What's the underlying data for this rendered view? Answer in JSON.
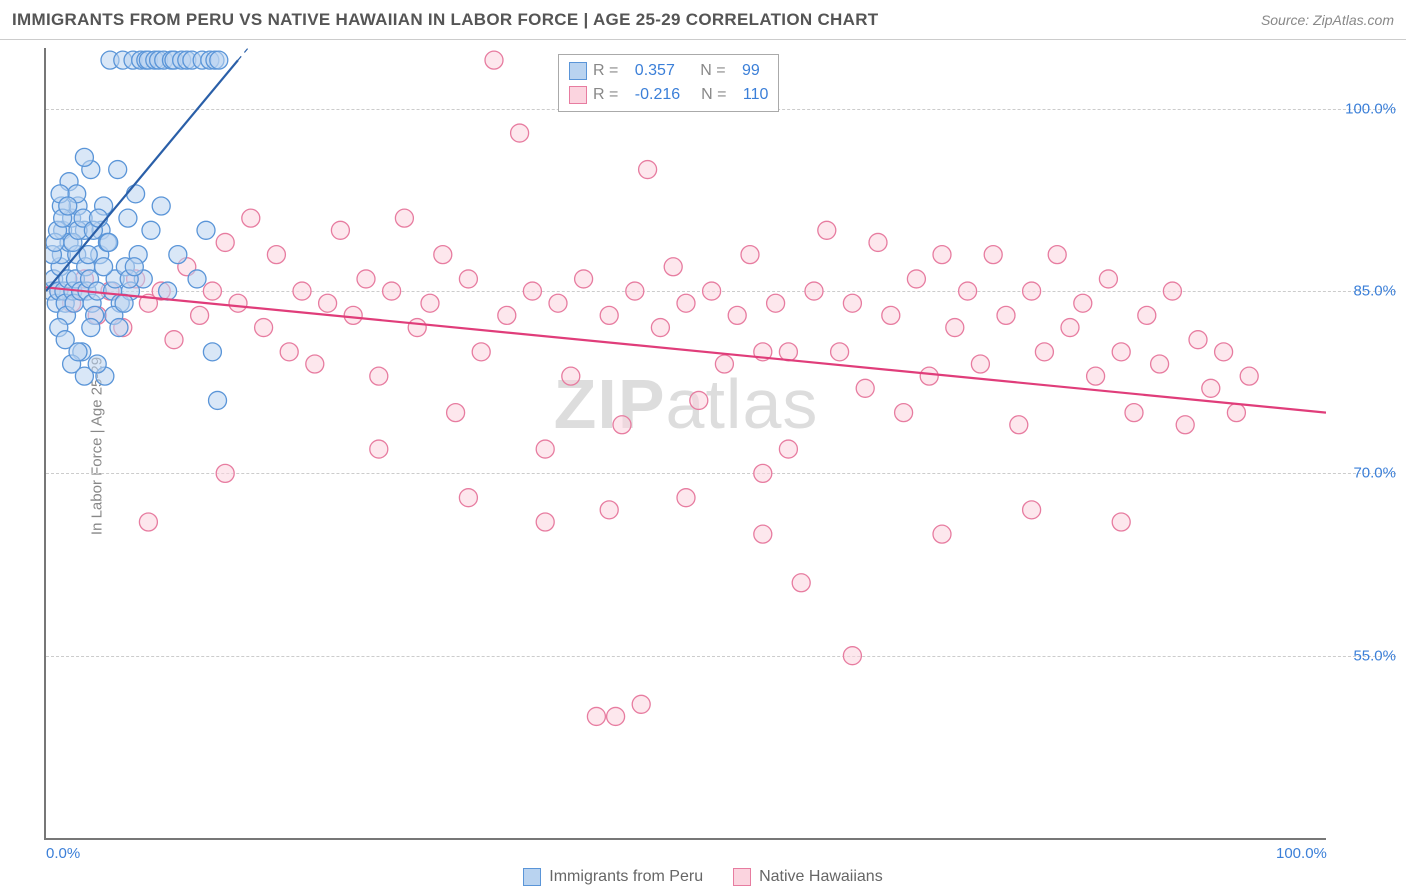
{
  "title": "IMMIGRANTS FROM PERU VS NATIVE HAWAIIAN IN LABOR FORCE | AGE 25-29 CORRELATION CHART",
  "source": "Source: ZipAtlas.com",
  "ylabel": "In Labor Force | Age 25-29",
  "watermark_zip": "ZIP",
  "watermark_rest": "atlas",
  "chart": {
    "type": "scatter",
    "background_color": "#ffffff",
    "grid_color": "#cccccc",
    "axis_color": "#777777",
    "tick_color": "#3b7fd8",
    "label_color": "#888888",
    "title_color": "#555555",
    "title_fontsize": 17,
    "label_fontsize": 15,
    "tick_fontsize": 15,
    "xlim": [
      0,
      100
    ],
    "ylim": [
      40,
      105
    ],
    "yticks": [
      55.0,
      70.0,
      85.0,
      100.0
    ],
    "ytick_labels": [
      "55.0%",
      "70.0%",
      "85.0%",
      "100.0%"
    ],
    "xticks": [
      0,
      100
    ],
    "xtick_labels": [
      "0.0%",
      "100.0%"
    ],
    "marker_radius": 9,
    "marker_stroke_width": 1.3,
    "line_width": 2.2,
    "series": [
      {
        "name": "Immigrants from Peru",
        "fill": "#b9d3f0",
        "fill_opacity": 0.55,
        "stroke": "#5a95d8",
        "line_color": "#2a5fa8",
        "R": 0.357,
        "N": 99,
        "regression": {
          "x1": 0,
          "y1": 85,
          "x2": 15,
          "y2": 104,
          "dash_extend_x": 21
        },
        "points": [
          [
            0.4,
            85
          ],
          [
            0.6,
            86
          ],
          [
            0.8,
            84
          ],
          [
            1.0,
            85
          ],
          [
            1.1,
            87
          ],
          [
            1.2,
            88
          ],
          [
            1.3,
            90
          ],
          [
            1.4,
            85
          ],
          [
            1.5,
            84
          ],
          [
            1.6,
            83
          ],
          [
            1.7,
            86
          ],
          [
            1.8,
            89
          ],
          [
            2.0,
            91
          ],
          [
            2.1,
            85
          ],
          [
            2.2,
            84
          ],
          [
            2.3,
            86
          ],
          [
            2.4,
            88
          ],
          [
            2.5,
            92
          ],
          [
            2.7,
            85
          ],
          [
            2.8,
            80
          ],
          [
            3.0,
            90
          ],
          [
            3.1,
            87
          ],
          [
            3.2,
            85
          ],
          [
            3.4,
            86
          ],
          [
            3.5,
            95
          ],
          [
            3.6,
            84
          ],
          [
            3.8,
            83
          ],
          [
            4.0,
            85
          ],
          [
            4.2,
            88
          ],
          [
            4.3,
            90
          ],
          [
            4.5,
            92
          ],
          [
            4.6,
            78
          ],
          [
            4.8,
            89
          ],
          [
            5.0,
            104
          ],
          [
            5.2,
            85
          ],
          [
            5.4,
            86
          ],
          [
            5.6,
            95
          ],
          [
            5.8,
            84
          ],
          [
            6.0,
            104
          ],
          [
            6.2,
            87
          ],
          [
            6.4,
            91
          ],
          [
            6.6,
            85
          ],
          [
            6.8,
            104
          ],
          [
            7.0,
            93
          ],
          [
            7.2,
            88
          ],
          [
            7.4,
            104
          ],
          [
            7.6,
            86
          ],
          [
            7.8,
            104
          ],
          [
            8.0,
            104
          ],
          [
            8.2,
            90
          ],
          [
            8.5,
            104
          ],
          [
            8.8,
            104
          ],
          [
            9.0,
            92
          ],
          [
            9.2,
            104
          ],
          [
            9.5,
            85
          ],
          [
            9.8,
            104
          ],
          [
            10.0,
            104
          ],
          [
            10.3,
            88
          ],
          [
            10.6,
            104
          ],
          [
            11.0,
            104
          ],
          [
            11.4,
            104
          ],
          [
            11.8,
            86
          ],
          [
            12.2,
            104
          ],
          [
            12.5,
            90
          ],
          [
            12.8,
            104
          ],
          [
            13.0,
            80
          ],
          [
            13.2,
            104
          ],
          [
            13.4,
            76
          ],
          [
            13.5,
            104
          ],
          [
            1.0,
            82
          ],
          [
            1.5,
            81
          ],
          [
            2.0,
            79
          ],
          [
            2.5,
            80
          ],
          [
            3.0,
            78
          ],
          [
            3.5,
            82
          ],
          [
            4.0,
            79
          ],
          [
            1.2,
            92
          ],
          [
            1.8,
            94
          ],
          [
            2.4,
            93
          ],
          [
            3.0,
            96
          ],
          [
            0.5,
            88
          ],
          [
            0.7,
            89
          ],
          [
            0.9,
            90
          ],
          [
            1.1,
            93
          ],
          [
            1.3,
            91
          ],
          [
            1.7,
            92
          ],
          [
            2.1,
            89
          ],
          [
            2.5,
            90
          ],
          [
            2.9,
            91
          ],
          [
            3.3,
            88
          ],
          [
            3.7,
            90
          ],
          [
            4.1,
            91
          ],
          [
            4.5,
            87
          ],
          [
            4.9,
            89
          ],
          [
            5.3,
            83
          ],
          [
            5.7,
            82
          ],
          [
            6.1,
            84
          ],
          [
            6.5,
            86
          ],
          [
            6.9,
            87
          ]
        ]
      },
      {
        "name": "Native Hawaiians",
        "fill": "#fbd4df",
        "fill_opacity": 0.55,
        "stroke": "#e77ca0",
        "line_color": "#e03d7a",
        "R": -0.216,
        "N": 110,
        "regression": {
          "x1": 0,
          "y1": 85.3,
          "x2": 100,
          "y2": 75
        },
        "points": [
          [
            1,
            85
          ],
          [
            2,
            84
          ],
          [
            3,
            86
          ],
          [
            4,
            83
          ],
          [
            5,
            85
          ],
          [
            6,
            82
          ],
          [
            7,
            86
          ],
          [
            8,
            84
          ],
          [
            9,
            85
          ],
          [
            10,
            81
          ],
          [
            11,
            87
          ],
          [
            12,
            83
          ],
          [
            13,
            85
          ],
          [
            14,
            89
          ],
          [
            15,
            84
          ],
          [
            16,
            91
          ],
          [
            17,
            82
          ],
          [
            18,
            88
          ],
          [
            19,
            80
          ],
          [
            20,
            85
          ],
          [
            21,
            79
          ],
          [
            22,
            84
          ],
          [
            23,
            90
          ],
          [
            24,
            83
          ],
          [
            25,
            86
          ],
          [
            26,
            78
          ],
          [
            27,
            85
          ],
          [
            28,
            91
          ],
          [
            29,
            82
          ],
          [
            30,
            84
          ],
          [
            31,
            88
          ],
          [
            32,
            75
          ],
          [
            33,
            86
          ],
          [
            34,
            80
          ],
          [
            35,
            104
          ],
          [
            36,
            83
          ],
          [
            37,
            98
          ],
          [
            38,
            85
          ],
          [
            39,
            72
          ],
          [
            40,
            84
          ],
          [
            41,
            78
          ],
          [
            42,
            86
          ],
          [
            43,
            50
          ],
          [
            44,
            83
          ],
          [
            44.5,
            50
          ],
          [
            45,
            74
          ],
          [
            46,
            85
          ],
          [
            46.5,
            51
          ],
          [
            47,
            95
          ],
          [
            48,
            82
          ],
          [
            49,
            87
          ],
          [
            50,
            84
          ],
          [
            51,
            76
          ],
          [
            52,
            85
          ],
          [
            53,
            79
          ],
          [
            54,
            83
          ],
          [
            55,
            88
          ],
          [
            56,
            70
          ],
          [
            57,
            84
          ],
          [
            58,
            72
          ],
          [
            59,
            61
          ],
          [
            60,
            85
          ],
          [
            61,
            90
          ],
          [
            62,
            80
          ],
          [
            63,
            84
          ],
          [
            64,
            77
          ],
          [
            65,
            89
          ],
          [
            66,
            83
          ],
          [
            67,
            75
          ],
          [
            68,
            86
          ],
          [
            69,
            78
          ],
          [
            70,
            88
          ],
          [
            71,
            82
          ],
          [
            72,
            85
          ],
          [
            73,
            79
          ],
          [
            74,
            88
          ],
          [
            75,
            83
          ],
          [
            76,
            74
          ],
          [
            77,
            85
          ],
          [
            78,
            80
          ],
          [
            79,
            88
          ],
          [
            80,
            82
          ],
          [
            81,
            84
          ],
          [
            82,
            78
          ],
          [
            83,
            86
          ],
          [
            84,
            80
          ],
          [
            85,
            75
          ],
          [
            86,
            83
          ],
          [
            87,
            79
          ],
          [
            88,
            85
          ],
          [
            89,
            74
          ],
          [
            90,
            81
          ],
          [
            91,
            77
          ],
          [
            92,
            80
          ],
          [
            93,
            75
          ],
          [
            94,
            78
          ],
          [
            8,
            66
          ],
          [
            14,
            70
          ],
          [
            26,
            72
          ],
          [
            33,
            68
          ],
          [
            39,
            66
          ],
          [
            44,
            67
          ],
          [
            50,
            68
          ],
          [
            56,
            65
          ],
          [
            63,
            55
          ],
          [
            70,
            65
          ],
          [
            77,
            67
          ],
          [
            84,
            66
          ],
          [
            56,
            80
          ],
          [
            58,
            80
          ]
        ]
      }
    ]
  },
  "legend": {
    "r_label": "R =",
    "n_label": "N ="
  },
  "bottom_legend": {
    "item1": "Immigrants from Peru",
    "item2": "Native Hawaiians"
  }
}
